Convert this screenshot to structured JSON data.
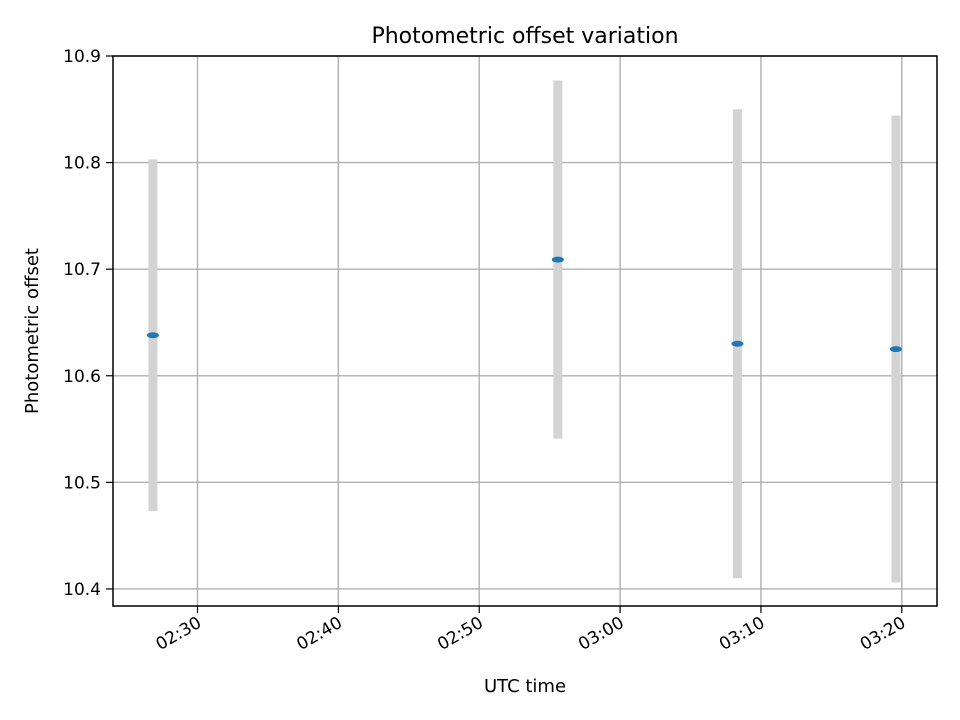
{
  "chart_data": {
    "type": "scatter",
    "title": "Photometric offset variation",
    "xlabel": "UTC time",
    "ylabel": "Photometric offset",
    "x_axis": {
      "kind": "time",
      "range": [
        "02:24:00",
        "03:22:30"
      ],
      "ticks": [
        "02:30",
        "02:40",
        "02:50",
        "03:00",
        "03:10",
        "03:20"
      ]
    },
    "y_axis": {
      "range": [
        10.384,
        10.9
      ],
      "ticks": [
        "10.4",
        "10.5",
        "10.6",
        "10.7",
        "10.8",
        "10.9"
      ]
    },
    "grid": true,
    "points": [
      {
        "time": "02:26:50",
        "value": 10.638,
        "error_low": 10.473,
        "error_high": 10.803
      },
      {
        "time": "02:55:35",
        "value": 10.709,
        "error_low": 10.541,
        "error_high": 10.877
      },
      {
        "time": "03:08:20",
        "value": 10.63,
        "error_low": 10.41,
        "error_high": 10.85
      },
      {
        "time": "03:19:35",
        "value": 10.625,
        "error_low": 10.406,
        "error_high": 10.844
      }
    ],
    "colors": {
      "marker": "#1f77b4",
      "errorbar": "#d3d3d3",
      "grid": "#b0b0b0",
      "axes": "#000000"
    }
  }
}
